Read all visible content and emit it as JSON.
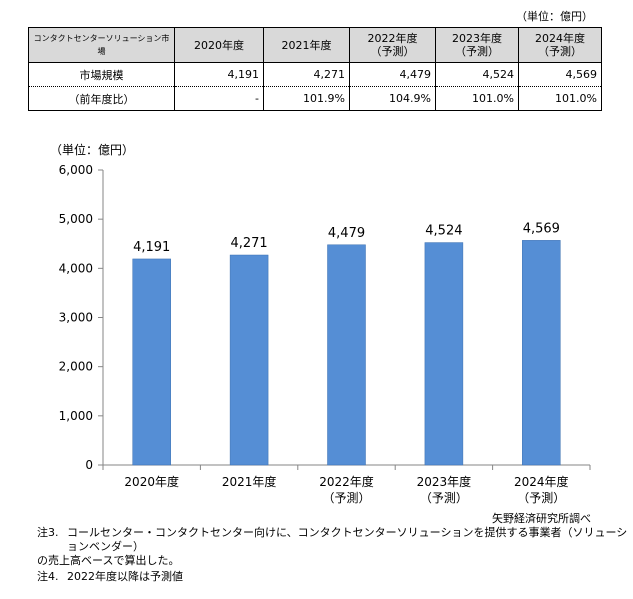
{
  "table": {
    "unit": "（単位：億円）",
    "corner": "コンタクトセンターソリューション市場",
    "headers": [
      {
        "year": "2020年度",
        "sub": ""
      },
      {
        "year": "2021年度",
        "sub": ""
      },
      {
        "year": "2022年度",
        "sub": "（予測）"
      },
      {
        "year": "2023年度",
        "sub": "（予測）"
      },
      {
        "year": "2024年度",
        "sub": "（予測）"
      }
    ],
    "rows": [
      {
        "label": "市場規模",
        "values": [
          "4,191",
          "4,271",
          "4,479",
          "4,524",
          "4,569"
        ]
      },
      {
        "label": "（前年度比）",
        "values": [
          "-",
          "101.9%",
          "104.9%",
          "101.0%",
          "101.0%"
        ]
      }
    ]
  },
  "chart_data": {
    "type": "bar",
    "unit_label": "（単位：億円）",
    "categories": [
      "2020年度",
      "2021年度",
      "2022年度",
      "2023年度",
      "2024年度"
    ],
    "category_sub": [
      "",
      "",
      "（予測）",
      "（予測）",
      "（予測）"
    ],
    "values": [
      4191,
      4271,
      4479,
      4524,
      4569
    ],
    "value_labels": [
      "4,191",
      "4,271",
      "4,479",
      "4,524",
      "4,569"
    ],
    "ylim": [
      0,
      6000
    ],
    "yticks": [
      0,
      1000,
      2000,
      3000,
      4000,
      5000,
      6000
    ],
    "ytick_labels": [
      "0",
      "1,000",
      "2,000",
      "3,000",
      "4,000",
      "5,000",
      "6,000"
    ],
    "bar_color": "#558ed5",
    "grid": false
  },
  "source": "矢野経済研究所調べ",
  "notes": [
    {
      "label": "注3.",
      "lines": [
        "コールセンター・コンタクトセンター向けに、コンタクトセンターソリューションを提供する事業者（ソリューションベンダー）",
        "の売上高ベースで算出した。"
      ]
    },
    {
      "label": "注4.",
      "lines": [
        "2022年度以降は予測値"
      ]
    }
  ]
}
